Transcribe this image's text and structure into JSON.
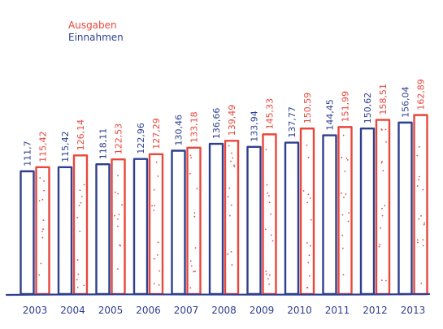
{
  "chart_data": {
    "type": "bar",
    "categories": [
      "2003",
      "2004",
      "2005",
      "2006",
      "2007",
      "2008",
      "2009",
      "2010",
      "2011",
      "2012",
      "2013"
    ],
    "series": [
      {
        "name": "Einnahmen",
        "color": "#2f3f8f",
        "values": [
          111.7,
          115.42,
          118.11,
          122.96,
          130.46,
          136.66,
          133.94,
          137.77,
          144.45,
          150.62,
          156.04
        ],
        "labels": [
          "111,7",
          "115,42",
          "118,11",
          "122,96",
          "130,46",
          "136,66",
          "133,94",
          "137,77",
          "144,45",
          "150,62",
          "156,04"
        ]
      },
      {
        "name": "Ausgaben",
        "color": "#e8473c",
        "values": [
          115.42,
          126.14,
          122.53,
          127.29,
          133.18,
          139.49,
          145.33,
          150.59,
          151.99,
          158.51,
          162.89
        ],
        "labels": [
          "115,42",
          "126,14",
          "122,53",
          "127,29",
          "133,18",
          "139,49",
          "145,33",
          "150,59",
          "151,99",
          "158,51",
          "162,89"
        ]
      }
    ],
    "legend": {
      "position": "top-left",
      "items": [
        {
          "label": "Ausgaben",
          "color": "#e8473c"
        },
        {
          "label": "Einnahmen",
          "color": "#2f3f8f"
        }
      ]
    },
    "ylim": [
      0,
      170
    ],
    "grid": false,
    "title": "",
    "xlabel": "",
    "ylabel": ""
  }
}
